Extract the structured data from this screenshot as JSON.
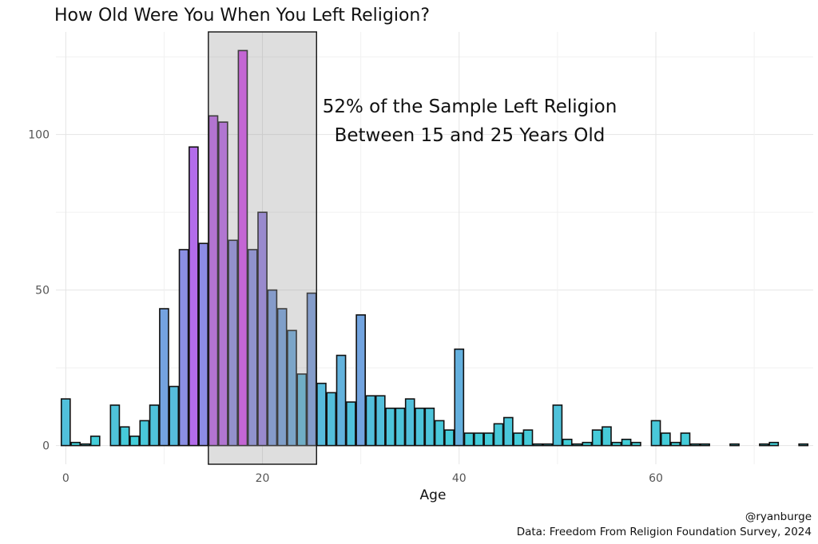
{
  "chart_data": {
    "type": "bar",
    "title": "How Old Were You When You Left Religion?",
    "xlabel": "Age",
    "ylabel": "",
    "xlim": [
      -1,
      76
    ],
    "ylim": [
      -6,
      133
    ],
    "x_ticks": [
      0,
      20,
      40,
      60
    ],
    "y_ticks": [
      0,
      50,
      100
    ],
    "grid": true,
    "highlight_range": [
      15,
      25
    ],
    "annotation": [
      "52% of the Sample Left Religion",
      "Between 15 and 25 Years Old"
    ],
    "caption": [
      "@ryanburge",
      "Data: Freedom From Religion Foundation Survey, 2024"
    ],
    "color_scale": {
      "low": "#3fd0d8",
      "high": "#d84cf0"
    },
    "x": [
      0,
      1,
      2,
      3,
      5,
      6,
      7,
      8,
      9,
      10,
      11,
      12,
      13,
      14,
      15,
      16,
      17,
      18,
      19,
      20,
      21,
      22,
      23,
      24,
      25,
      26,
      27,
      28,
      29,
      30,
      31,
      32,
      33,
      34,
      35,
      36,
      37,
      38,
      39,
      40,
      41,
      42,
      43,
      44,
      45,
      46,
      47,
      48,
      49,
      50,
      51,
      52,
      53,
      54,
      55,
      56,
      57,
      58,
      60,
      61,
      62,
      63,
      64,
      65,
      68,
      71,
      72,
      75
    ],
    "values": [
      15,
      1,
      0.5,
      3,
      13,
      6,
      3,
      8,
      13,
      44,
      19,
      63,
      96,
      65,
      106,
      104,
      66,
      127,
      63,
      75,
      50,
      44,
      37,
      23,
      49,
      20,
      17,
      29,
      14,
      42,
      16,
      16,
      12,
      12,
      15,
      12,
      12,
      8,
      5,
      31,
      4,
      4,
      4,
      7,
      9,
      4,
      5,
      0.5,
      0.5,
      13,
      2,
      0.5,
      1,
      5,
      6,
      1,
      2,
      1,
      8,
      4,
      1,
      4,
      0.5,
      0.5,
      0.5,
      0.5,
      1,
      0.5
    ]
  }
}
